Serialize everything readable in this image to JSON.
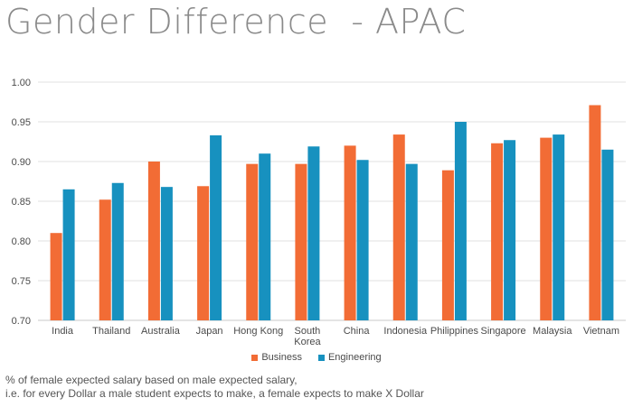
{
  "chart_data": {
    "type": "bar",
    "title": "Gender Difference  - APAC",
    "categories": [
      "India",
      "Thailand",
      "Australia",
      "Japan",
      "Hong Kong",
      "South Korea",
      "China",
      "Indonesia",
      "Philippines",
      "Singapore",
      "Malaysia",
      "Vietnam"
    ],
    "category_lines": [
      [
        "India"
      ],
      [
        "Thailand"
      ],
      [
        "Australia"
      ],
      [
        "Japan"
      ],
      [
        "Hong Kong"
      ],
      [
        "South",
        "Korea"
      ],
      [
        "China"
      ],
      [
        "Indonesia"
      ],
      [
        "Philippines"
      ],
      [
        "Singapore"
      ],
      [
        "Malaysia"
      ],
      [
        "Vietnam"
      ]
    ],
    "series": [
      {
        "name": "Business",
        "color": "#f26c35",
        "values": [
          0.81,
          0.852,
          0.9,
          0.869,
          0.897,
          0.897,
          0.92,
          0.934,
          0.889,
          0.923,
          0.93,
          0.971
        ]
      },
      {
        "name": "Engineering",
        "color": "#1791bf",
        "values": [
          0.865,
          0.873,
          0.868,
          0.933,
          0.91,
          0.919,
          0.902,
          0.897,
          0.95,
          0.927,
          0.934,
          0.915
        ]
      }
    ],
    "ylim": [
      0.7,
      1.0
    ],
    "yticks": [
      "0.70",
      "0.75",
      "0.80",
      "0.85",
      "0.90",
      "0.95",
      "1.00"
    ],
    "ytick_values": [
      0.7,
      0.75,
      0.8,
      0.85,
      0.9,
      0.95,
      1.0
    ],
    "grid": true,
    "legend": "bottom"
  },
  "footnote": {
    "line1": "% of female expected salary based on male expected salary,",
    "line2": "i.e. for every Dollar a male student expects to make, a female expects to make X Dollar"
  }
}
